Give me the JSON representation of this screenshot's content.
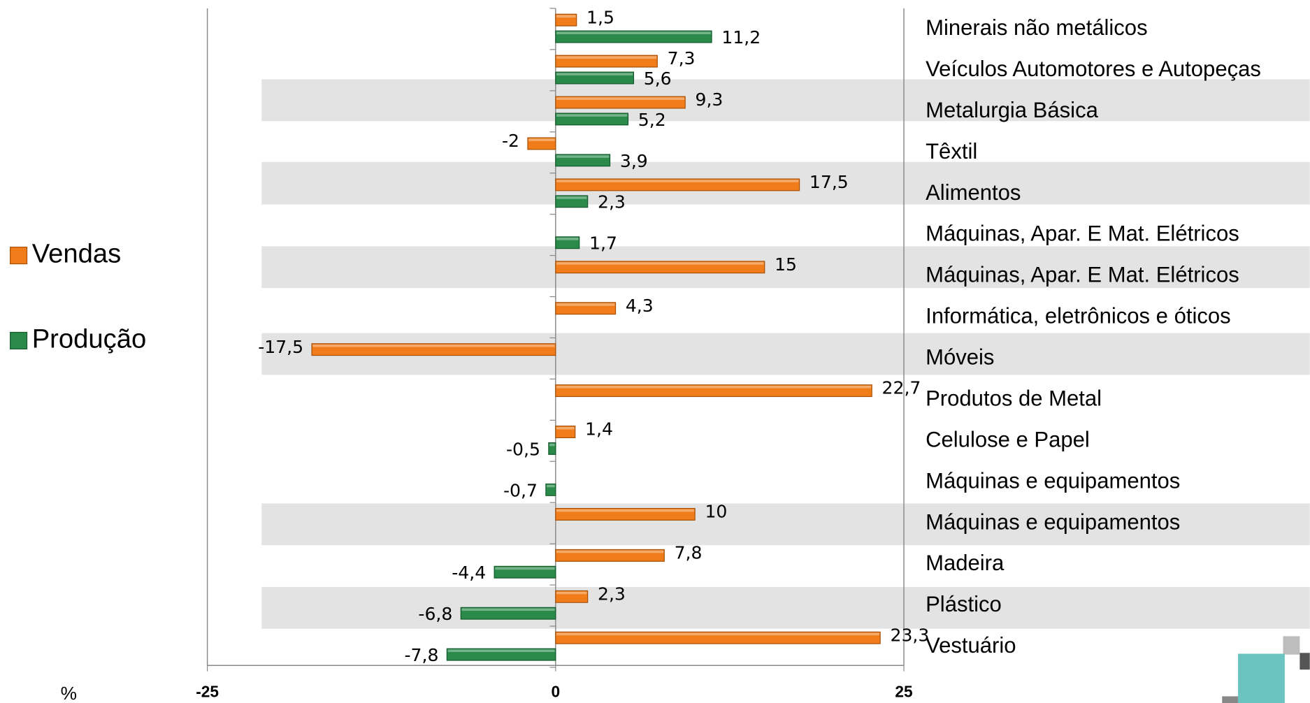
{
  "chart_data": {
    "type": "bar",
    "orientation": "horizontal",
    "x_label": "%",
    "categories": [
      "Minerais não metálicos",
      "Veículos Automotores e Autopeças",
      "Metalurgia Básica",
      "Têxtil",
      "Alimentos",
      "Máquinas, Apar. E Mat. Elétricos",
      "Máquinas, Apar. E Mat. Elétricos",
      "Informática, eletrônicos e óticos",
      "Móveis",
      "Produtos de Metal",
      "Celulose e Papel",
      "Máquinas e equipamentos",
      "Máquinas e equipamentos",
      "Madeira",
      "Plástico",
      "Vestuário"
    ],
    "series": [
      {
        "name": "Vendas",
        "color": "#f07d1a",
        "values": [
          1.5,
          7.3,
          9.3,
          -2,
          17.5,
          null,
          15,
          4.3,
          -17.5,
          22.7,
          1.4,
          null,
          10,
          7.8,
          2.3,
          23.3
        ],
        "value_labels": [
          "1,5",
          "7,3",
          "9,3",
          "-2",
          "17,5",
          null,
          "15",
          "4,3",
          "-17,5",
          "22,7",
          "1,4",
          null,
          "10",
          "7,8",
          "2,3",
          "23,3"
        ]
      },
      {
        "name": "Produção",
        "color": "#2a8a4a",
        "values": [
          11.2,
          5.6,
          5.2,
          3.9,
          2.3,
          1.7,
          null,
          null,
          null,
          null,
          -0.5,
          -0.7,
          null,
          -4.4,
          -6.8,
          -7.8
        ],
        "value_labels": [
          "11,2",
          "5,6",
          "5,2",
          "3,9",
          "2,3",
          "1,7",
          null,
          null,
          null,
          null,
          "-0,5",
          "-0,7",
          null,
          "-4,4",
          "-6,8",
          "-7,8"
        ]
      }
    ],
    "xlim": [
      -25,
      25
    ],
    "xticks": [
      -25,
      0,
      25
    ],
    "legend": "left"
  }
}
